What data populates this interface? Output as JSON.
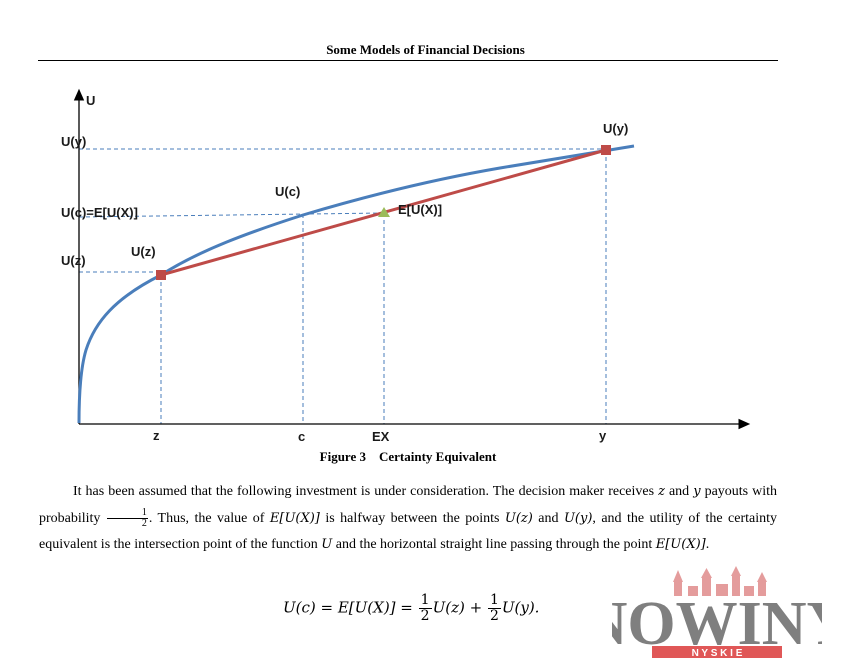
{
  "header": {
    "running_title": "Some Models of Financial Decisions"
  },
  "figure": {
    "caption": "Figure 3    Certainty Equivalent",
    "y_axis_label": "U",
    "y_labels": {
      "uy": "U(y)",
      "uc": "U(c)=E[U(X)]",
      "uz": "U(z)"
    },
    "x_labels": {
      "z": "z",
      "c": "c",
      "ex": "EX",
      "y": "y"
    },
    "annotations": {
      "uy_point": "U(y)",
      "uc_point": "U(c)",
      "uz_point": "U(z)",
      "eux_point": "E[U(X)]"
    },
    "colors": {
      "utility_curve": "#4a7ebb",
      "chord": "#be4b48",
      "endpoint_marker": "#be4b48",
      "expected_marker": "#9bbb59",
      "guide_lines": "#4a7ebb"
    }
  },
  "body": {
    "p1_a": "It has been assumed that the following investment is under consideration. The decision maker receives",
    "p1_z": "z",
    "p1_and": "and",
    "p1_y": "y",
    "p1_b": "payouts with probability",
    "p1_half_num": "1",
    "p1_half_den": "2",
    "p1_c": ". Thus, the value of",
    "p1_eux": "E[U(X)]",
    "p1_d": "is halfway between the points",
    "p1_uz": "U(z)",
    "p1_and2": "and",
    "p1_uy": "U(y)",
    "p1_e": ", and the utility of the certainty equivalent is the intersection point of the function",
    "p1_U": "U",
    "p1_f": "and the horizontal straight line passing through the point",
    "p1_eux2": "E[U(X)]",
    "p1_g": "."
  },
  "equation": {
    "lhs": "U(c) = ",
    "mid": "E[U(X)] = ",
    "frac_num": "1",
    "frac_den": "2",
    "term1": "U(z) + ",
    "term2": "U(y)."
  },
  "logo": {
    "wordmark": "NOWINY",
    "tagline": "N Y S K I E"
  }
}
